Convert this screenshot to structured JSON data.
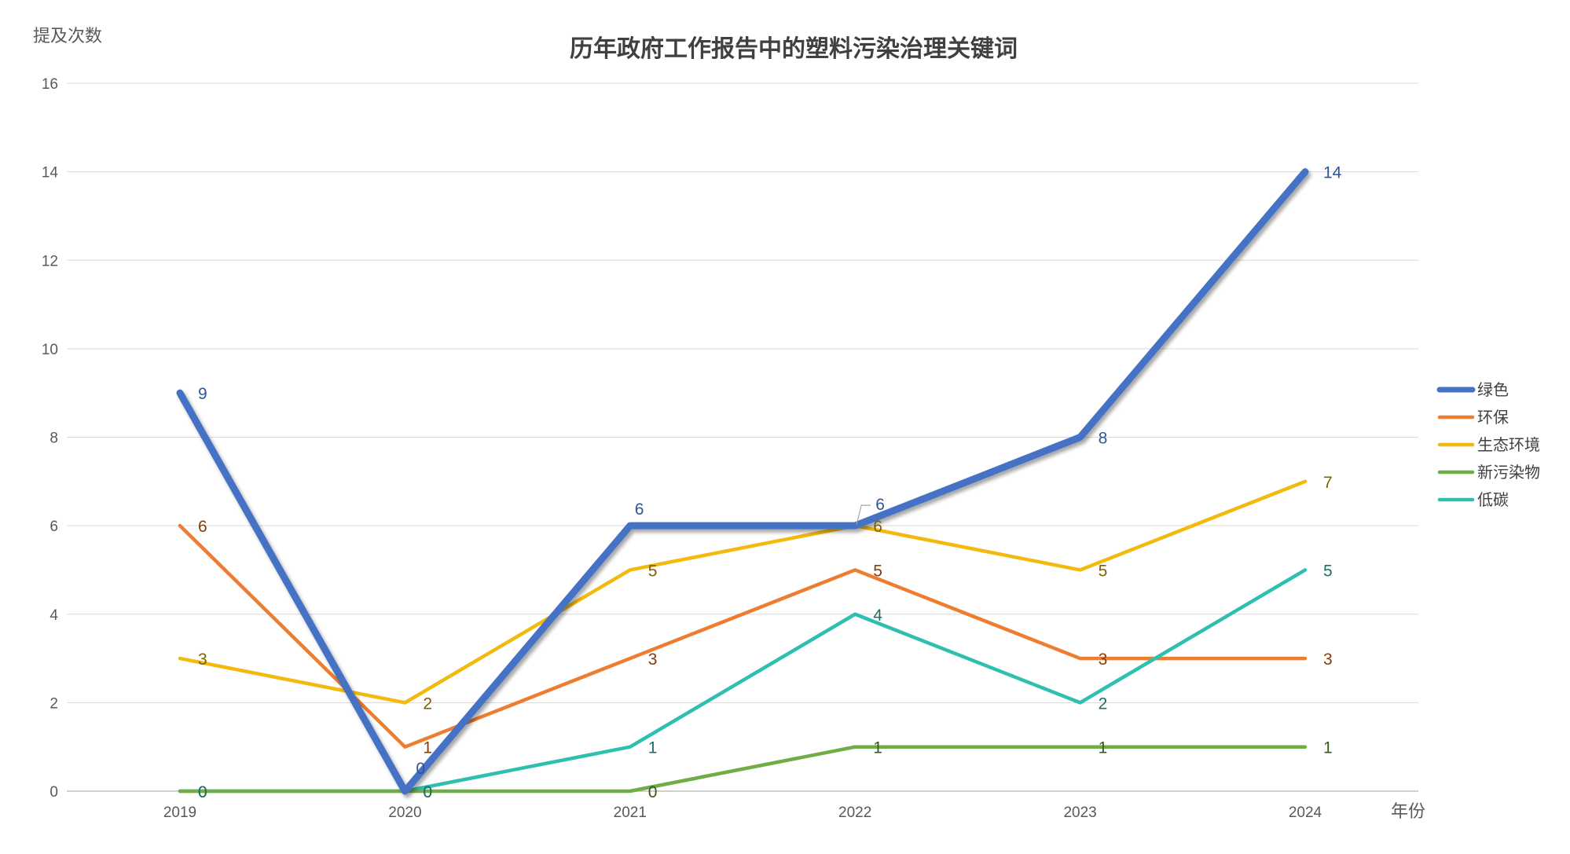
{
  "chart_data": {
    "type": "line",
    "title": "历年政府工作报告中的塑料污染治理关键词",
    "xlabel": "年份",
    "ylabel": "提及次数",
    "ylim": [
      0,
      16
    ],
    "yticks": [
      0,
      2,
      4,
      6,
      8,
      10,
      12,
      14,
      16
    ],
    "categories": [
      "2019",
      "2020",
      "2021",
      "2022",
      "2023",
      "2024"
    ],
    "grid": true,
    "legend_position": "right",
    "series": [
      {
        "name": "绿色",
        "color": "#4472C4",
        "label_color": "#2F5597",
        "values": [
          9,
          0,
          6,
          6,
          8,
          14
        ]
      },
      {
        "name": "环保",
        "color": "#ED7D31",
        "label_color": "#843C0C",
        "values": [
          6,
          1,
          3,
          5,
          3,
          3
        ]
      },
      {
        "name": "生态环境",
        "color": "#F2B90F",
        "label_color": "#7F6000",
        "values": [
          3,
          2,
          5,
          6,
          5,
          7
        ]
      },
      {
        "name": "新污染物",
        "color": "#70AD47",
        "label_color": "#385723",
        "values": [
          0,
          0,
          0,
          1,
          1,
          1
        ]
      },
      {
        "name": "低碳",
        "color": "#2EBFB0",
        "label_color": "#1D6F67",
        "values": [
          0,
          0,
          1,
          4,
          2,
          5
        ]
      }
    ]
  }
}
